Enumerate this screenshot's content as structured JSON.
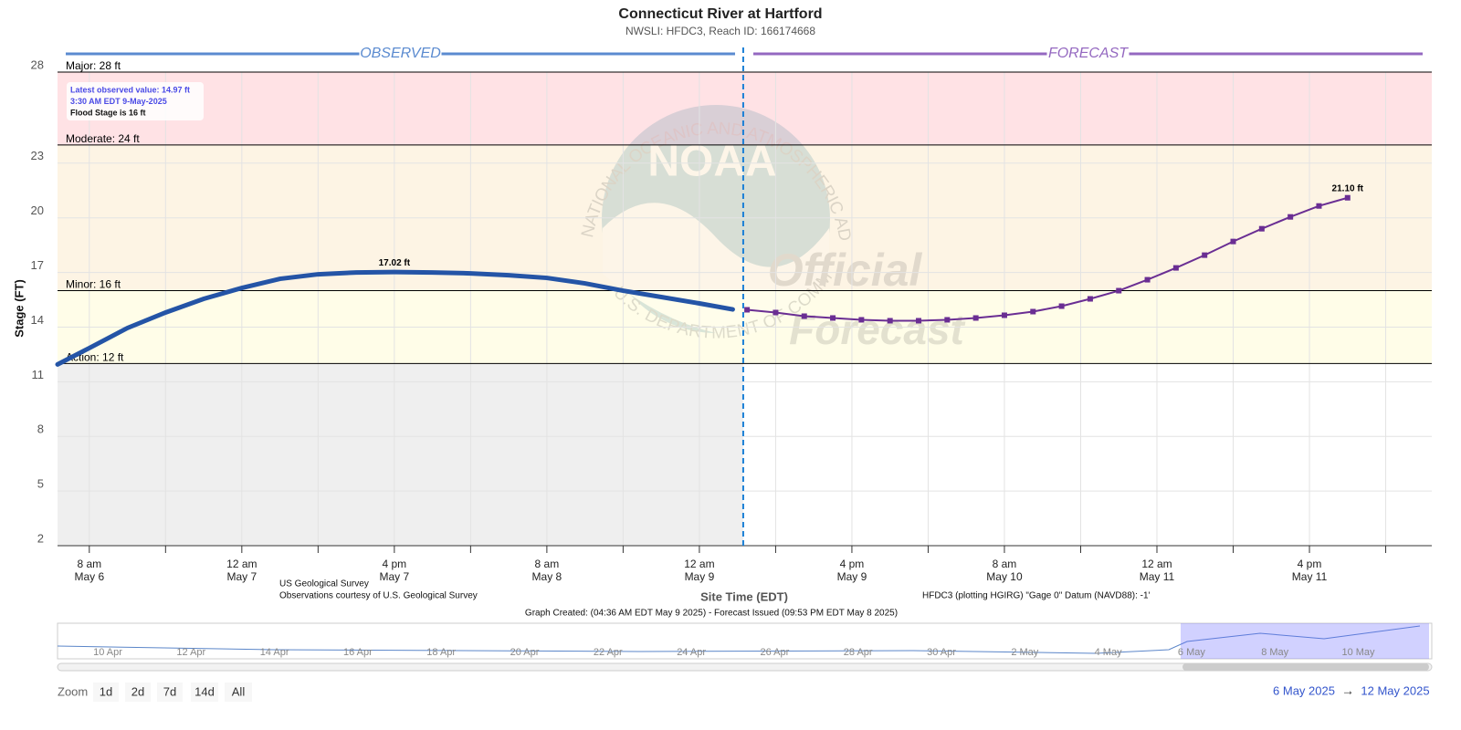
{
  "chart_data": {
    "type": "line",
    "title": "Connecticut River at Hartford",
    "subtitle": "NWSLI: HFDC3, Reach ID: 166174668",
    "y_label": "Stage (FT)",
    "x_label": "Site Time (EDT)",
    "ylim": [
      2,
      28
    ],
    "yticks": [
      2,
      5,
      8,
      11,
      14,
      17,
      20,
      23,
      28
    ],
    "xlim": [
      "2025-05-06T04:40",
      "2025-05-12T04:50"
    ],
    "xticks": [
      {
        "value": "2025-05-06T08:00",
        "label": [
          "8 am",
          "May 6"
        ]
      },
      {
        "value": "2025-05-06T16:00",
        "label": null
      },
      {
        "value": "2025-05-07T00:00",
        "label": [
          "12 am",
          "May 7"
        ]
      },
      {
        "value": "2025-05-07T08:00",
        "label": null
      },
      {
        "value": "2025-05-07T16:00",
        "label": [
          "4 pm",
          "May 7"
        ]
      },
      {
        "value": "2025-05-08T00:00",
        "label": null
      },
      {
        "value": "2025-05-08T08:00",
        "label": [
          "8 am",
          "May 8"
        ]
      },
      {
        "value": "2025-05-08T16:00",
        "label": null
      },
      {
        "value": "2025-05-09T00:00",
        "label": [
          "12 am",
          "May 9"
        ]
      },
      {
        "value": "2025-05-09T08:00",
        "label": null
      },
      {
        "value": "2025-05-09T16:00",
        "label": [
          "4 pm",
          "May 9"
        ]
      },
      {
        "value": "2025-05-10T00:00",
        "label": null
      },
      {
        "value": "2025-05-10T08:00",
        "label": [
          "8 am",
          "May 10"
        ]
      },
      {
        "value": "2025-05-10T16:00",
        "label": null
      },
      {
        "value": "2025-05-11T00:00",
        "label": [
          "12 am",
          "May 11"
        ]
      },
      {
        "value": "2025-05-11T08:00",
        "label": null
      },
      {
        "value": "2025-05-11T16:00",
        "label": [
          "4 pm",
          "May 11"
        ]
      },
      {
        "value": "2025-05-12T00:00",
        "label": null
      }
    ],
    "grid": true,
    "now_line": "2025-05-09T04:36",
    "observed_shade": "#efefef",
    "flood_categories": [
      {
        "label": "Action: 12 ft",
        "value": 12,
        "color": "#fffde8"
      },
      {
        "label": "Minor: 16 ft",
        "value": 16,
        "color": "#fdf4e4"
      },
      {
        "label": "Moderate: 24 ft",
        "value": 24,
        "color": "#ffe2e5"
      },
      {
        "label": "Major: 28 ft",
        "value": 28
      }
    ],
    "sections": [
      {
        "label": "OBSERVED",
        "color": "#5b8bd0"
      },
      {
        "label": "FORECAST",
        "color": "#9468c0"
      }
    ],
    "annotation": [
      "Latest observed value: 14.97 ft",
      "3:30 AM EDT 9-May-2025",
      "Flood Stage is 16 ft"
    ],
    "series": [
      {
        "name": "Observed",
        "color": "#2454a6",
        "markers": false,
        "x": [
          "2025-05-06T04:40",
          "2025-05-06T08:00",
          "2025-05-06T12:00",
          "2025-05-06T16:00",
          "2025-05-06T20:00",
          "2025-05-07T00:00",
          "2025-05-07T04:00",
          "2025-05-07T08:00",
          "2025-05-07T12:00",
          "2025-05-07T16:00",
          "2025-05-07T20:00",
          "2025-05-08T00:00",
          "2025-05-08T04:00",
          "2025-05-08T08:00",
          "2025-05-08T12:00",
          "2025-05-08T16:00",
          "2025-05-08T20:00",
          "2025-05-09T00:00",
          "2025-05-09T03:30"
        ],
        "values": [
          11.95,
          12.85,
          13.95,
          14.8,
          15.55,
          16.15,
          16.65,
          16.9,
          17.0,
          17.02,
          17.0,
          16.95,
          16.85,
          16.7,
          16.4,
          16.0,
          15.65,
          15.3,
          14.97
        ],
        "value_labels": [
          null,
          null,
          null,
          null,
          null,
          null,
          null,
          null,
          null,
          "17.02 ft",
          null,
          null,
          null,
          null,
          null,
          null,
          null,
          null,
          null
        ]
      },
      {
        "name": "Forecast",
        "color": "#6a2e93",
        "markers": true,
        "x": [
          "2025-05-09T05:00",
          "2025-05-09T08:00",
          "2025-05-09T11:00",
          "2025-05-09T14:00",
          "2025-05-09T17:00",
          "2025-05-09T20:00",
          "2025-05-09T23:00",
          "2025-05-10T02:00",
          "2025-05-10T05:00",
          "2025-05-10T08:00",
          "2025-05-10T11:00",
          "2025-05-10T14:00",
          "2025-05-10T17:00",
          "2025-05-10T20:00",
          "2025-05-10T23:00",
          "2025-05-11T02:00",
          "2025-05-11T05:00",
          "2025-05-11T08:00",
          "2025-05-11T11:00",
          "2025-05-11T14:00",
          "2025-05-11T17:00",
          "2025-05-11T20:00"
        ],
        "values": [
          14.95,
          14.8,
          14.6,
          14.5,
          14.4,
          14.35,
          14.35,
          14.4,
          14.5,
          14.65,
          14.85,
          15.15,
          15.55,
          16.0,
          16.6,
          17.25,
          17.95,
          18.7,
          19.4,
          20.05,
          20.65,
          21.1
        ],
        "value_labels": [
          null,
          null,
          null,
          null,
          null,
          null,
          null,
          null,
          null,
          null,
          null,
          null,
          null,
          null,
          null,
          null,
          null,
          null,
          null,
          null,
          null,
          "21.10 ft"
        ]
      }
    ]
  },
  "watermark": {
    "logo": "NOAA",
    "ring_top": "NATIONAL OCEANIC AND ATMOSPHERIC ADMINISTRATION",
    "ring_bottom": "U.S. DEPARTMENT OF COMMERCE",
    "line1": "Official",
    "line2": "Forecast"
  },
  "footer": {
    "source1": "US Geological Survey",
    "source2": "Observations courtesy of U.S. Geological Survey",
    "datum": "HFDC3 (plotting HGIRG) \"Gage 0\" Datum (NAVD88): -1'",
    "created": "Graph Created: (04:36 AM EDT May 9 2025) - Forecast Issued (09:53 PM EDT May 8 2025)"
  },
  "navigator": {
    "labels": [
      "10 Apr",
      "12 Apr",
      "14 Apr",
      "16 Apr",
      "18 Apr",
      "20 Apr",
      "22 Apr",
      "24 Apr",
      "26 Apr",
      "28 Apr",
      "30 Apr",
      "2 May",
      "4 May",
      "6 May",
      "8 May",
      "10 May"
    ]
  },
  "zoom": {
    "label": "Zoom",
    "buttons": [
      "1d",
      "2d",
      "7d",
      "14d",
      "All"
    ],
    "from": "6 May 2025",
    "arrow": "→",
    "to": "12 May 2025"
  }
}
